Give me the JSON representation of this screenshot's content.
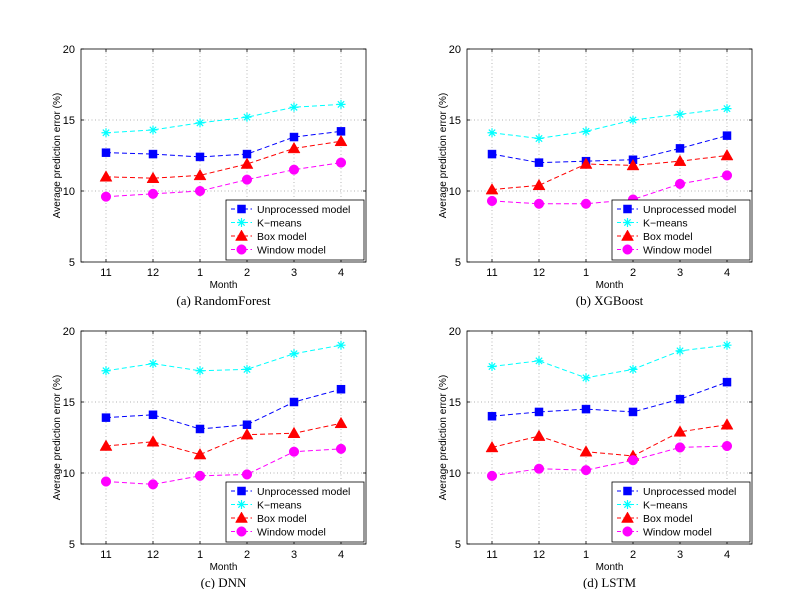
{
  "chart_data": [
    {
      "type": "line",
      "caption": "(a)  RandomForest",
      "categories": [
        "11",
        "12",
        "1",
        "2",
        "3",
        "4"
      ],
      "xlabel": "Month",
      "ylabel": "Average prediction error (%)",
      "ylim": [
        5,
        20
      ],
      "yticks": [
        5,
        10,
        15,
        20
      ],
      "grid": true,
      "legend": "bottom-right",
      "series": [
        {
          "name": "Unprocessed model",
          "color": "#0000ff",
          "marker": "square",
          "values": [
            12.7,
            12.6,
            12.4,
            12.6,
            13.8,
            14.2
          ]
        },
        {
          "name": "K−means",
          "color": "#00ffff",
          "marker": "star",
          "values": [
            14.1,
            14.3,
            14.8,
            15.2,
            15.9,
            16.1
          ]
        },
        {
          "name": "Box model",
          "color": "#ff0000",
          "marker": "triangle",
          "values": [
            11.0,
            10.9,
            11.1,
            11.9,
            13.0,
            13.5
          ]
        },
        {
          "name": "Window model",
          "color": "#ff00ff",
          "marker": "circle",
          "values": [
            9.6,
            9.8,
            10.0,
            10.8,
            11.5,
            12.0
          ]
        }
      ]
    },
    {
      "type": "line",
      "caption": "(b)  XGBoost",
      "categories": [
        "11",
        "12",
        "1",
        "2",
        "3",
        "4"
      ],
      "xlabel": "Month",
      "ylabel": "Average prediction error (%)",
      "ylim": [
        5,
        20
      ],
      "yticks": [
        5,
        10,
        15,
        20
      ],
      "grid": true,
      "legend": "bottom-right",
      "series": [
        {
          "name": "Unprocessed model",
          "color": "#0000ff",
          "marker": "square",
          "values": [
            12.6,
            12.0,
            12.1,
            12.2,
            13.0,
            13.9
          ]
        },
        {
          "name": "K−means",
          "color": "#00ffff",
          "marker": "star",
          "values": [
            14.1,
            13.7,
            14.2,
            15.0,
            15.4,
            15.8
          ]
        },
        {
          "name": "Box model",
          "color": "#ff0000",
          "marker": "triangle",
          "values": [
            10.1,
            10.4,
            11.9,
            11.8,
            12.1,
            12.5
          ]
        },
        {
          "name": "Window model",
          "color": "#ff00ff",
          "marker": "circle",
          "values": [
            9.3,
            9.1,
            9.1,
            9.4,
            10.5,
            11.1
          ]
        }
      ]
    },
    {
      "type": "line",
      "caption": "(c)  DNN",
      "categories": [
        "11",
        "12",
        "1",
        "2",
        "3",
        "4"
      ],
      "xlabel": "Month",
      "ylabel": "Average prediction error (%)",
      "ylim": [
        5,
        20
      ],
      "yticks": [
        5,
        10,
        15,
        20
      ],
      "grid": true,
      "legend": "bottom-right",
      "series": [
        {
          "name": "Unprocessed model",
          "color": "#0000ff",
          "marker": "square",
          "values": [
            13.9,
            14.1,
            13.1,
            13.4,
            15.0,
            15.9
          ]
        },
        {
          "name": "K−means",
          "color": "#00ffff",
          "marker": "star",
          "values": [
            17.2,
            17.7,
            17.2,
            17.3,
            18.4,
            19.0
          ]
        },
        {
          "name": "Box model",
          "color": "#ff0000",
          "marker": "triangle",
          "values": [
            11.9,
            12.2,
            11.3,
            12.7,
            12.8,
            13.5
          ]
        },
        {
          "name": "Window model",
          "color": "#ff00ff",
          "marker": "circle",
          "values": [
            9.4,
            9.2,
            9.8,
            9.9,
            11.5,
            11.7
          ]
        }
      ]
    },
    {
      "type": "line",
      "caption": "(d)  LSTM",
      "categories": [
        "11",
        "12",
        "1",
        "2",
        "3",
        "4"
      ],
      "xlabel": "Month",
      "ylabel": "Average prediction error (%)",
      "ylim": [
        5,
        20
      ],
      "yticks": [
        5,
        10,
        15,
        20
      ],
      "grid": true,
      "legend": "bottom-right",
      "series": [
        {
          "name": "Unprocessed model",
          "color": "#0000ff",
          "marker": "square",
          "values": [
            14.0,
            14.3,
            14.5,
            14.3,
            15.2,
            16.4
          ]
        },
        {
          "name": "K−means",
          "color": "#00ffff",
          "marker": "star",
          "values": [
            17.5,
            17.9,
            16.7,
            17.3,
            18.6,
            19.0
          ]
        },
        {
          "name": "Box model",
          "color": "#ff0000",
          "marker": "triangle",
          "values": [
            11.8,
            12.6,
            11.5,
            11.2,
            12.9,
            13.4
          ]
        },
        {
          "name": "Window model",
          "color": "#ff00ff",
          "marker": "circle",
          "values": [
            9.8,
            10.3,
            10.2,
            10.9,
            11.8,
            11.9
          ]
        }
      ]
    }
  ]
}
